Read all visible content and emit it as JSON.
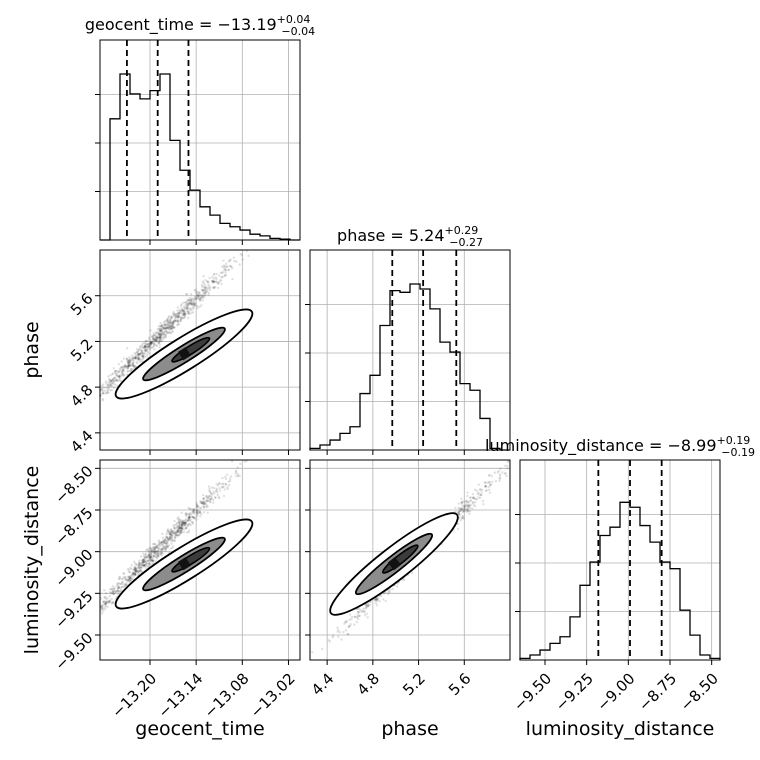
{
  "chart_data": {
    "type": "corner",
    "parameters": [
      "geocent_time",
      "phase",
      "luminosity_distance"
    ],
    "axis_labels": {
      "x": [
        "geocent_time",
        "phase",
        "luminosity_distance"
      ],
      "y_row1": "phase",
      "y_row2": "luminosity_distance"
    },
    "ranges": {
      "geocent_time": [
        -13.265,
        -13.005
      ],
      "phase": [
        4.25,
        6.0
      ],
      "luminosity_distance": [
        -9.65,
        -8.45
      ]
    },
    "ticks": {
      "geocent_time": {
        "values": [
          -13.2,
          -13.14,
          -13.08,
          -13.02
        ],
        "labels": [
          "−13.20",
          "−13.14",
          "−13.08",
          "−13.02"
        ]
      },
      "phase": {
        "values": [
          4.4,
          4.8,
          5.2,
          5.6
        ],
        "labels": [
          "4.4",
          "4.8",
          "5.2",
          "5.6"
        ]
      },
      "luminosity_distance": {
        "values": [
          -9.5,
          -9.25,
          -9.0,
          -8.75,
          -8.5
        ],
        "labels": [
          "−9.50",
          "−9.25",
          "−9.00",
          "−8.75",
          "−8.50"
        ]
      }
    },
    "titles": [
      {
        "param": "geocent_time",
        "prefix": "geocent_time = −13.19",
        "sup": "+0.04",
        "sub": "−0.04"
      },
      {
        "param": "phase",
        "prefix": "phase = 5.24",
        "sup": "+0.29",
        "sub": "−0.27"
      },
      {
        "param": "luminosity_distance",
        "prefix": "luminosity_distance = −8.99",
        "sup": "+0.19",
        "sub": "−0.19"
      }
    ],
    "quantiles": {
      "geocent_time": [
        -13.23,
        -13.19,
        -13.15
      ],
      "phase": [
        4.97,
        5.24,
        5.53
      ],
      "luminosity_distance": [
        -9.18,
        -8.99,
        -8.8
      ]
    },
    "histograms": {
      "geocent_time": {
        "edges": [
          -13.265,
          -13.252,
          -13.239,
          -13.226,
          -13.213,
          -13.2,
          -13.187,
          -13.174,
          -13.161,
          -13.148,
          -13.135,
          -13.122,
          -13.109,
          -13.096,
          -13.083,
          -13.07,
          -13.057,
          -13.044,
          -13.031,
          -13.018,
          -13.005
        ],
        "counts": [
          0,
          0.73,
          1.0,
          0.88,
          0.85,
          0.9,
          1.0,
          0.6,
          0.42,
          0.3,
          0.2,
          0.15,
          0.1,
          0.08,
          0.06,
          0.035,
          0.025,
          0.01,
          0.005,
          0
        ]
      },
      "phase": {
        "edges": [
          4.25,
          4.3375,
          4.425,
          4.5125,
          4.6,
          4.6875,
          4.775,
          4.8625,
          4.95,
          5.0375,
          5.125,
          5.2125,
          5.3,
          5.3875,
          5.475,
          5.5625,
          5.65,
          5.7375,
          5.825,
          5.9125,
          6.0
        ],
        "counts": [
          0.01,
          0.03,
          0.06,
          0.1,
          0.14,
          0.34,
          0.45,
          0.75,
          0.96,
          0.95,
          1.0,
          0.97,
          0.85,
          0.65,
          0.59,
          0.4,
          0.36,
          0.19,
          0.01,
          0
        ]
      },
      "luminosity_distance": {
        "edges": [
          -9.65,
          -9.59,
          -9.53,
          -9.47,
          -9.41,
          -9.35,
          -9.29,
          -9.23,
          -9.17,
          -9.11,
          -9.05,
          -8.99,
          -8.93,
          -8.87,
          -8.81,
          -8.75,
          -8.69,
          -8.63,
          -8.57,
          -8.51,
          -8.45
        ],
        "counts": [
          0.01,
          0.03,
          0.06,
          0.1,
          0.14,
          0.26,
          0.45,
          0.59,
          0.75,
          0.8,
          0.95,
          0.92,
          0.81,
          0.71,
          0.59,
          0.55,
          0.3,
          0.15,
          0.03,
          0.01
        ]
      }
    },
    "grid": true
  }
}
